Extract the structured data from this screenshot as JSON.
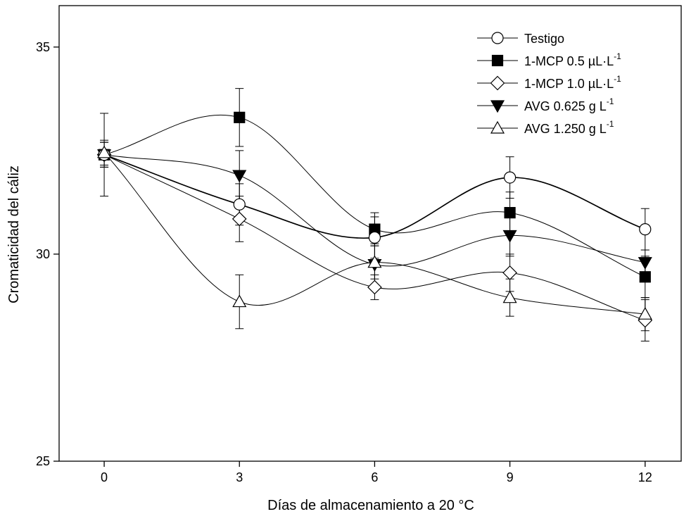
{
  "chart_data": {
    "type": "line",
    "xlabel": "Días de almacenamiento a 20 °C",
    "ylabel": "Cromaticidad del cáliz",
    "xlim": [
      -1,
      12.8
    ],
    "ylim": [
      25,
      36
    ],
    "x_ticks": [
      0,
      3,
      6,
      9,
      12
    ],
    "y_ticks": [
      25,
      30,
      35
    ],
    "legend_position": "top-right",
    "smooth_lines": true,
    "series": [
      {
        "name": "Testigo",
        "legend_main": "Testigo",
        "legend_sup": "",
        "marker": "circle",
        "fill": "#ffffff",
        "x": [
          0,
          3,
          6,
          9,
          12
        ],
        "y": [
          32.4,
          31.2,
          30.4,
          31.85,
          30.6
        ],
        "err": [
          1.0,
          0.5,
          0.5,
          0.5,
          0.5
        ]
      },
      {
        "name": "1-MCP 0.5 µL·L-1",
        "legend_main": "1-MCP 0.5 µL·L",
        "legend_sup": "-1",
        "marker": "square",
        "fill": "#000000",
        "x": [
          0,
          3,
          6,
          9,
          12
        ],
        "y": [
          32.4,
          33.3,
          30.6,
          31.0,
          29.45
        ],
        "err": [
          0.3,
          0.7,
          0.4,
          0.5,
          0.5
        ]
      },
      {
        "name": "1-MCP 1.0 µL·L-1",
        "legend_main": "1-MCP 1.0 µL·L",
        "legend_sup": "-1",
        "marker": "diamond",
        "fill": "#ffffff",
        "x": [
          0,
          3,
          6,
          9,
          12
        ],
        "y": [
          32.4,
          30.85,
          29.2,
          29.55,
          28.4
        ],
        "err": [
          0.3,
          0.55,
          0.3,
          0.45,
          0.5
        ]
      },
      {
        "name": "AVG 0.625 g L-1",
        "legend_main": "AVG 0.625 g L",
        "legend_sup": "-1",
        "marker": "triangle-down",
        "fill": "#000000",
        "x": [
          0,
          3,
          6,
          9,
          12
        ],
        "y": [
          32.4,
          31.9,
          29.75,
          30.45,
          29.8
        ],
        "err": [
          0.3,
          0.6,
          0.5,
          0.5,
          0.3
        ]
      },
      {
        "name": "AVG 1.250 g L-1",
        "legend_main": "AVG 1.250 g L",
        "legend_sup": "-1",
        "marker": "triangle-up",
        "fill": "#ffffff",
        "x": [
          0,
          3,
          6,
          9,
          12
        ],
        "y": [
          32.45,
          28.85,
          29.8,
          28.95,
          28.55
        ],
        "err": [
          0.3,
          0.65,
          0.4,
          0.45,
          0.4
        ]
      }
    ]
  }
}
